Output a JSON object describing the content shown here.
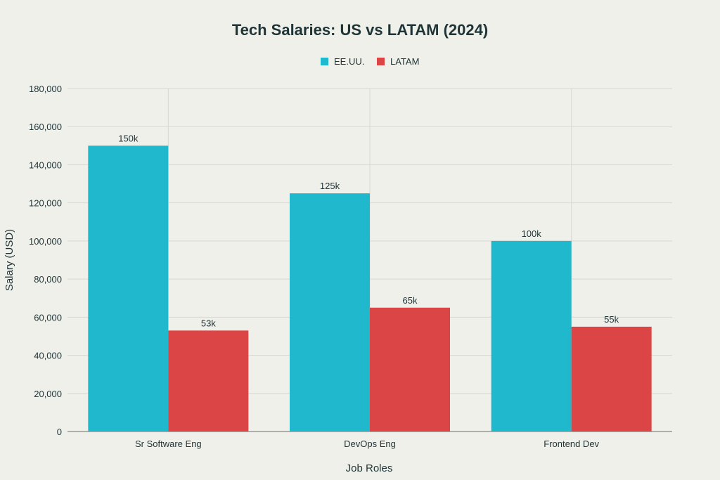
{
  "chart_data": {
    "type": "bar",
    "title": "Tech Salaries: US vs LATAM (2024)",
    "xlabel": "Job Roles",
    "ylabel": "Salary (USD)",
    "categories": [
      "Sr Software Eng",
      "DevOps Eng",
      "Frontend Dev"
    ],
    "series": [
      {
        "name": "EE.UU.",
        "values": [
          150000,
          125000,
          100000
        ],
        "labels": [
          "150k",
          "125k",
          "100k"
        ],
        "color": "#1fb8cd"
      },
      {
        "name": "LATAM",
        "values": [
          53000,
          65000,
          55000
        ],
        "labels": [
          "53k",
          "65k",
          "55k"
        ],
        "color": "#db4545"
      }
    ],
    "ylim": [
      0,
      180000
    ],
    "yticks": [
      0,
      20000,
      40000,
      60000,
      80000,
      100000,
      120000,
      140000,
      160000,
      180000
    ],
    "ytick_labels": [
      "0",
      "20,000",
      "40,000",
      "60,000",
      "80,000",
      "100,000",
      "120,000",
      "140,000",
      "160,000",
      "180,000"
    ],
    "grid": true,
    "legend_position": "top-center"
  },
  "colors": {
    "background": "#f0f0eb",
    "text": "#1f3437",
    "grid": "#d8d8d3",
    "axis": "#6b6b6b"
  }
}
